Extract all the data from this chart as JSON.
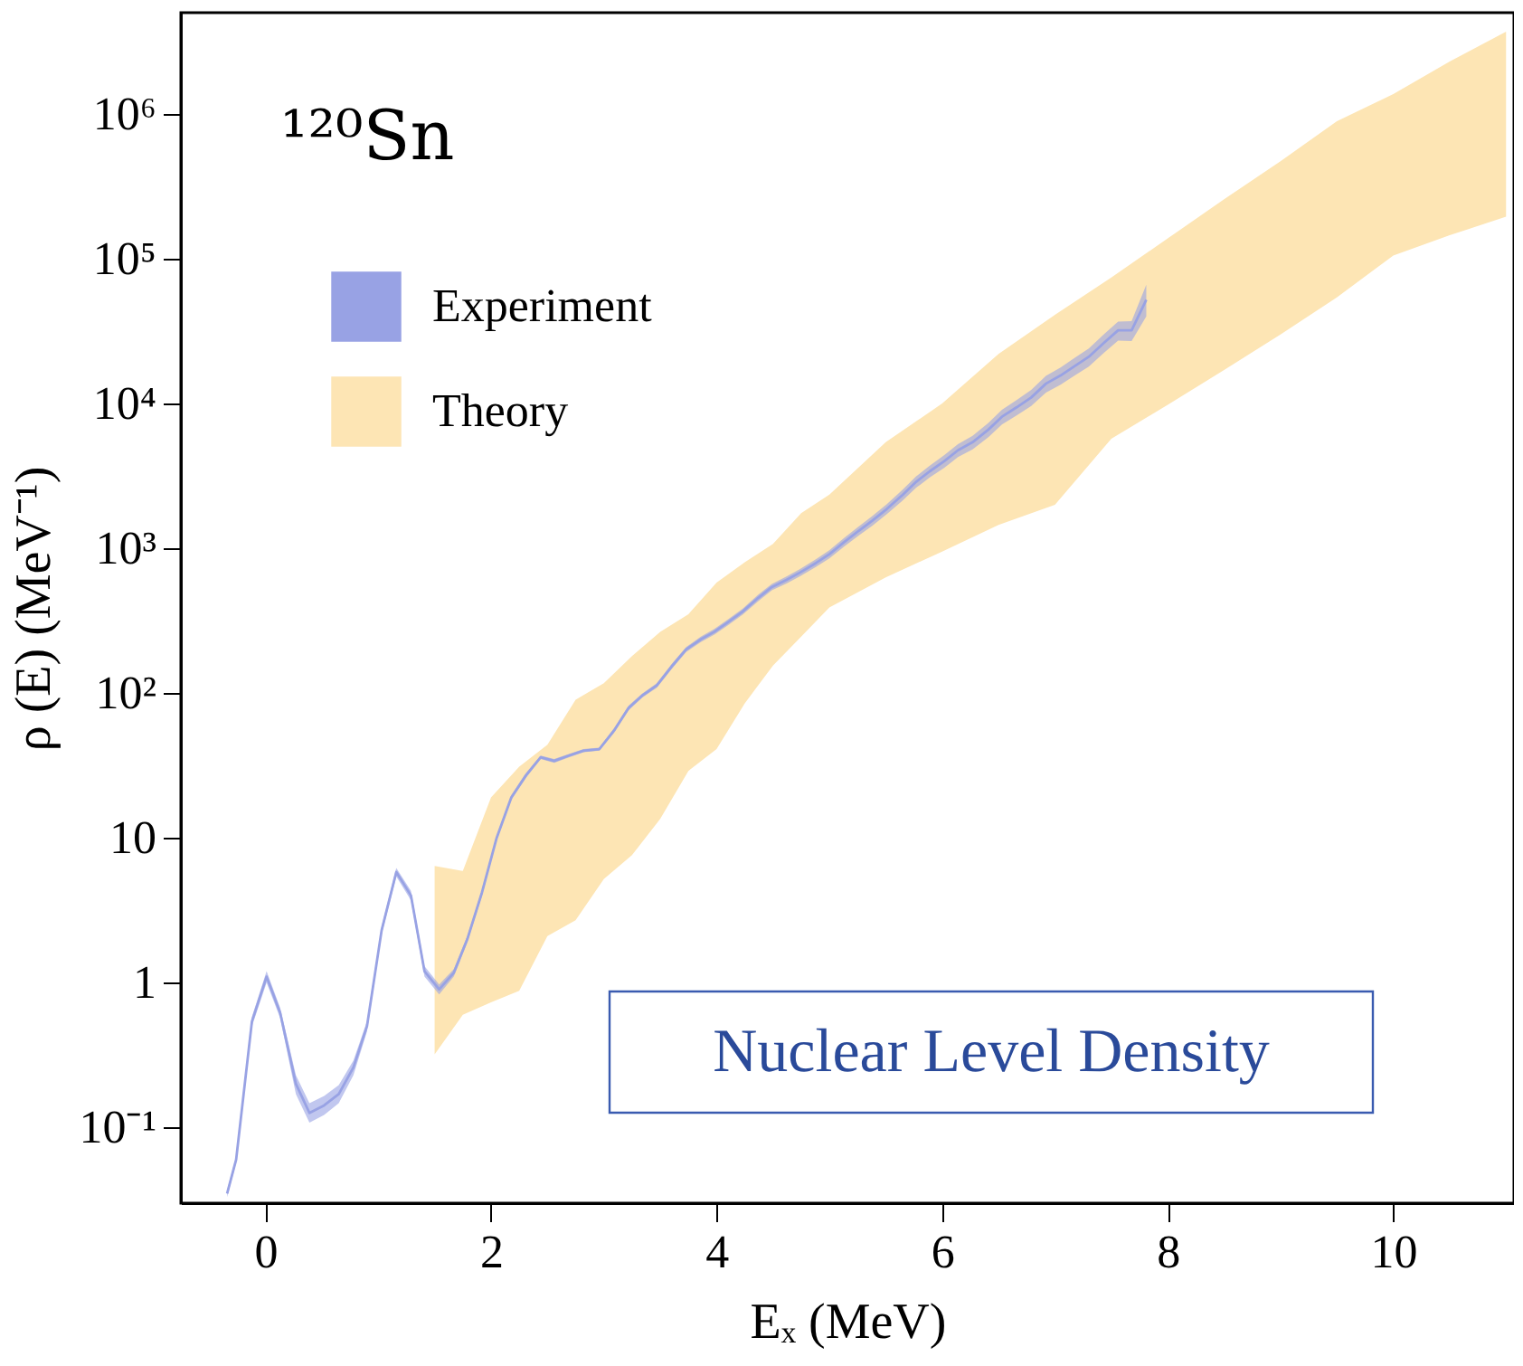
{
  "chart_data": {
    "type": "line",
    "xlabel": "Eₓ (MeV)",
    "ylabel": "ρ (E) (MeV⁻¹)",
    "xlim": [
      -0.75,
      11.07
    ],
    "xticks": [
      0,
      2,
      4,
      6,
      8,
      10
    ],
    "ylim": [
      0.03,
      5000000
    ],
    "log": "y",
    "yticks": [
      {
        "value": 0.1,
        "label": "10⁻¹"
      },
      1,
      10,
      {
        "value": 100,
        "label": "10²"
      },
      {
        "value": 1000,
        "label": "10³"
      },
      {
        "value": 10000,
        "label": "10⁴"
      },
      {
        "value": 100000,
        "label": "10⁵"
      },
      {
        "value": 1000000,
        "label": "10⁶"
      }
    ],
    "grid": false,
    "legend": "top left",
    "annotations": [
      "¹²⁰Sn",
      "Nuclear Level Density"
    ],
    "series": [
      {
        "name": "Theory",
        "color": "#fde5b4",
        "x": [
          1.5,
          1.75,
          2.0,
          2.25,
          2.5,
          2.75,
          3.0,
          3.25,
          3.5,
          3.75,
          4.0,
          4.25,
          4.5,
          4.75,
          5.0,
          5.5,
          6.0,
          6.5,
          7.0,
          7.5,
          8.0,
          8.5,
          9.0,
          9.5,
          10.0,
          10.5,
          11.0
        ],
        "lower": [
          0.32,
          0.6,
          0.73,
          0.88,
          2.1,
          2.7,
          5.2,
          7.6,
          13.5,
          29,
          41,
          85,
          155,
          245,
          390,
          630,
          950,
          1450,
          2000,
          5700,
          9800,
          17000,
          30000,
          54000,
          105000,
          145000,
          195000
        ],
        "upper": [
          6.4,
          5.9,
          19,
          31,
          44,
          90,
          117,
          180,
          265,
          350,
          580,
          800,
          1070,
          1750,
          2350,
          5400,
          10000,
          22000,
          41000,
          74000,
          138000,
          257000,
          470000,
          890000,
          1370000,
          2300000,
          3700000
        ],
        "values": [
          null,
          null,
          null,
          null,
          null,
          null,
          null,
          null,
          null,
          null,
          null,
          null,
          null,
          null,
          null,
          null,
          null,
          null,
          null,
          null,
          null,
          null,
          null,
          null,
          null,
          null,
          null
        ]
      },
      {
        "name": "Experiment",
        "color": "#98a2e4",
        "x": [
          -0.34,
          -0.26,
          -0.12,
          0.01,
          0.13,
          0.27,
          0.39,
          0.52,
          0.65,
          0.78,
          0.9,
          1.03,
          1.16,
          1.29,
          1.41,
          1.54,
          1.67,
          1.79,
          1.92,
          2.05,
          2.18,
          2.31,
          2.44,
          2.56,
          2.69,
          2.82,
          2.96,
          3.09,
          3.22,
          3.34,
          3.47,
          3.6,
          3.73,
          3.86,
          3.98,
          4.1,
          4.23,
          4.37,
          4.49,
          4.62,
          4.74,
          4.88,
          5.0,
          5.13,
          5.26,
          5.38,
          5.51,
          5.65,
          5.77,
          5.89,
          6.02,
          6.14,
          6.27,
          6.41,
          6.53,
          6.66,
          6.79,
          6.92,
          7.05,
          7.17,
          7.3,
          7.43,
          7.56,
          7.68,
          7.81
        ],
        "values": [
          0.035,
          0.06,
          0.54,
          1.1,
          0.62,
          0.2,
          0.126,
          0.142,
          0.17,
          0.26,
          0.5,
          2.3,
          5.8,
          4.0,
          1.2,
          0.9,
          1.17,
          2.0,
          4.2,
          10,
          19,
          27,
          36,
          34,
          37,
          40,
          41,
          55,
          79,
          96,
          113,
          152,
          200,
          235,
          265,
          308,
          365,
          455,
          540,
          605,
          680,
          790,
          910,
          1100,
          1320,
          1550,
          1870,
          2340,
          2880,
          3400,
          4000,
          4750,
          5400,
          6600,
          8100,
          9400,
          11000,
          13700,
          15600,
          18000,
          21000,
          26000,
          32000,
          32000,
          52000
        ],
        "lower": [
          0.033,
          0.057,
          0.5,
          1.0,
          0.57,
          0.17,
          0.108,
          0.122,
          0.147,
          0.23,
          0.46,
          2.15,
          5.4,
          3.7,
          1.1,
          0.83,
          1.1,
          1.9,
          4.0,
          9.6,
          18.3,
          26,
          35,
          33,
          36,
          39,
          40,
          53,
          76,
          93,
          109,
          146,
          192,
          225,
          253,
          294,
          348,
          432,
          512,
          572,
          641,
          742,
          852,
          1025,
          1225,
          1430,
          1720,
          2140,
          2620,
          3080,
          3600,
          4260,
          4820,
          5860,
          7150,
          8260,
          9620,
          11900,
          13500,
          15500,
          18000,
          22200,
          27200,
          27000,
          40000
        ],
        "upper": [
          0.037,
          0.063,
          0.58,
          1.2,
          0.67,
          0.23,
          0.147,
          0.165,
          0.196,
          0.29,
          0.54,
          2.45,
          6.2,
          4.3,
          1.3,
          0.97,
          1.24,
          2.1,
          4.4,
          10.4,
          19.7,
          28,
          37,
          35,
          38,
          41,
          42,
          57,
          82,
          99,
          117,
          158,
          208,
          245,
          277,
          322,
          382,
          478,
          568,
          638,
          719,
          838,
          968,
          1175,
          1415,
          1670,
          2020,
          2540,
          3140,
          3720,
          4400,
          5240,
          5980,
          7340,
          9050,
          10550,
          12400,
          15500,
          17700,
          20500,
          24000,
          29800,
          36800,
          37000,
          66000
        ]
      }
    ]
  }
}
